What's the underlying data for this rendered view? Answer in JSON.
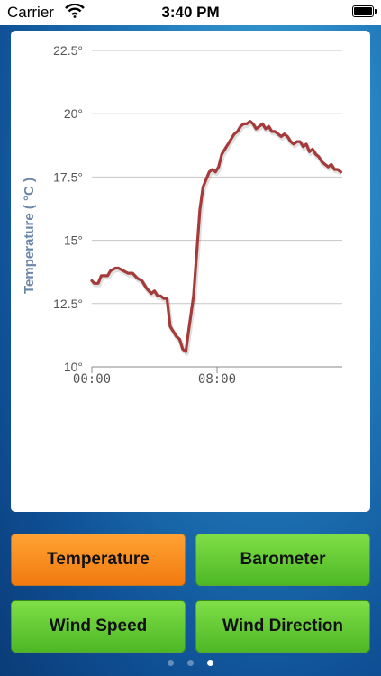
{
  "status_bar": {
    "carrier": "Carrier",
    "time": "3:40 PM"
  },
  "chart_data": {
    "type": "line",
    "ylabel": "Temperature ( °C )",
    "y_ticks": [
      "10°",
      "12.5°",
      "15°",
      "17.5°",
      "20°",
      "22.5°"
    ],
    "ylim": [
      10,
      22.5
    ],
    "x_ticks": [
      "00:00",
      "08:00"
    ],
    "xlim": [
      0,
      16
    ],
    "grid": true,
    "line_color": "#a53a3a",
    "series": [
      {
        "x": [
          0,
          0.15,
          0.4,
          0.6,
          0.8,
          1.0,
          1.2,
          1.5,
          1.7,
          2.0,
          2.3,
          2.6,
          2.9,
          3.2,
          3.5,
          3.8,
          4.0,
          4.2,
          4.4,
          4.6,
          4.8,
          5.0,
          5.2,
          5.4,
          5.6,
          5.8,
          6.0,
          6.2,
          6.5,
          6.7,
          6.9,
          7.1,
          7.3,
          7.5,
          7.7,
          7.9,
          8.1,
          8.3,
          8.5,
          8.7,
          8.9,
          9.1,
          9.3,
          9.5,
          9.7,
          9.9,
          10.1,
          10.3,
          10.5,
          10.7,
          10.9,
          11.1,
          11.3,
          11.5,
          11.7,
          11.9,
          12.1,
          12.3,
          12.5,
          12.7,
          12.9,
          13.1,
          13.3,
          13.5,
          13.7,
          13.9,
          14.1,
          14.3,
          14.5,
          14.7,
          14.9,
          15.1,
          15.3,
          15.5,
          15.7,
          15.9
        ],
        "y": [
          13.4,
          13.3,
          13.3,
          13.6,
          13.6,
          13.6,
          13.8,
          13.9,
          13.9,
          13.8,
          13.7,
          13.7,
          13.5,
          13.4,
          13.1,
          12.9,
          13.0,
          12.8,
          12.8,
          12.7,
          12.7,
          11.6,
          11.4,
          11.2,
          11.1,
          10.7,
          10.6,
          11.5,
          12.8,
          14.5,
          16.2,
          17.1,
          17.4,
          17.7,
          17.8,
          17.7,
          17.9,
          18.4,
          18.6,
          18.8,
          19.0,
          19.2,
          19.3,
          19.5,
          19.6,
          19.6,
          19.7,
          19.6,
          19.4,
          19.5,
          19.6,
          19.4,
          19.5,
          19.3,
          19.3,
          19.2,
          19.1,
          19.2,
          19.1,
          18.9,
          18.8,
          18.9,
          18.9,
          18.7,
          18.8,
          18.5,
          18.6,
          18.4,
          18.3,
          18.1,
          18.0,
          17.9,
          18.0,
          17.8,
          17.8,
          17.7
        ]
      }
    ]
  },
  "buttons": {
    "temperature": "Temperature",
    "barometer": "Barometer",
    "wind_speed": "Wind Speed",
    "wind_direction": "Wind Direction"
  },
  "pagination": {
    "pages": 3,
    "active_index": 2
  }
}
